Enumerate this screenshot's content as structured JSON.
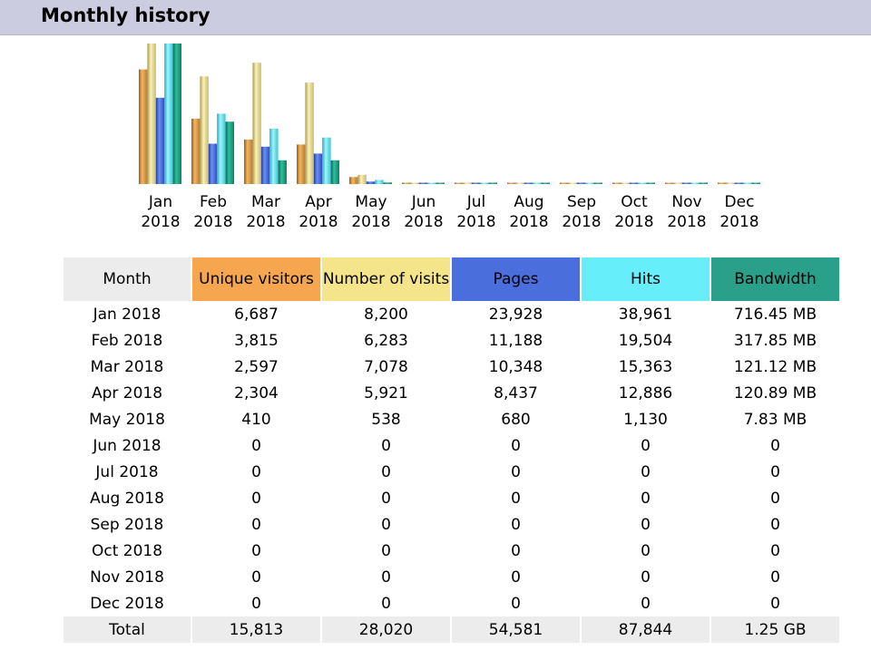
{
  "header": {
    "title": "Monthly history"
  },
  "colors": {
    "visitors": "#e8a451",
    "visits": "#ece098",
    "pages": "#4e73e0",
    "hits": "#5fe3f0",
    "bandwidth": "#1c9e82"
  },
  "chart_data": {
    "type": "bar",
    "categories": [
      "Jan\n2018",
      "Feb\n2018",
      "Mar\n2018",
      "Apr\n2018",
      "May\n2018",
      "Jun\n2018",
      "Jul\n2018",
      "Aug\n2018",
      "Sep\n2018",
      "Oct\n2018",
      "Nov\n2018",
      "Dec\n2018"
    ],
    "series": [
      {
        "key": "visitors",
        "values": [
          6687,
          3815,
          2597,
          2304,
          410,
          0,
          0,
          0,
          0,
          0,
          0,
          0
        ]
      },
      {
        "key": "visits",
        "values": [
          8200,
          6283,
          7078,
          5921,
          538,
          0,
          0,
          0,
          0,
          0,
          0,
          0
        ]
      },
      {
        "key": "pages",
        "values": [
          23928,
          11188,
          10348,
          8437,
          680,
          0,
          0,
          0,
          0,
          0,
          0,
          0
        ]
      },
      {
        "key": "hits",
        "values": [
          38961,
          19504,
          15363,
          12886,
          1130,
          0,
          0,
          0,
          0,
          0,
          0,
          0
        ]
      },
      {
        "key": "bandwidth",
        "values": [
          716.45,
          317.85,
          121.12,
          120.89,
          7.83,
          0,
          0,
          0,
          0,
          0,
          0,
          0
        ]
      }
    ]
  },
  "table": {
    "headers": {
      "month": "Month",
      "visitors": "Unique visitors",
      "visits": "Number of visits",
      "pages": "Pages",
      "hits": "Hits",
      "bandwidth": "Bandwidth"
    },
    "rows": [
      [
        "Jan 2018",
        "6,687",
        "8,200",
        "23,928",
        "38,961",
        "716.45 MB"
      ],
      [
        "Feb 2018",
        "3,815",
        "6,283",
        "11,188",
        "19,504",
        "317.85 MB"
      ],
      [
        "Mar 2018",
        "2,597",
        "7,078",
        "10,348",
        "15,363",
        "121.12 MB"
      ],
      [
        "Apr 2018",
        "2,304",
        "5,921",
        "8,437",
        "12,886",
        "120.89 MB"
      ],
      [
        "May 2018",
        "410",
        "538",
        "680",
        "1,130",
        "7.83 MB"
      ],
      [
        "Jun 2018",
        "0",
        "0",
        "0",
        "0",
        "0"
      ],
      [
        "Jul 2018",
        "0",
        "0",
        "0",
        "0",
        "0"
      ],
      [
        "Aug 2018",
        "0",
        "0",
        "0",
        "0",
        "0"
      ],
      [
        "Sep 2018",
        "0",
        "0",
        "0",
        "0",
        "0"
      ],
      [
        "Oct 2018",
        "0",
        "0",
        "0",
        "0",
        "0"
      ],
      [
        "Nov 2018",
        "0",
        "0",
        "0",
        "0",
        "0"
      ],
      [
        "Dec 2018",
        "0",
        "0",
        "0",
        "0",
        "0"
      ]
    ],
    "total": [
      "Total",
      "15,813",
      "28,020",
      "54,581",
      "87,844",
      "1.25 GB"
    ]
  }
}
